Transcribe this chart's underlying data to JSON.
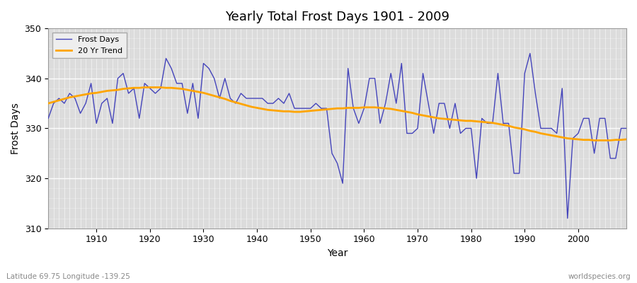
{
  "title": "Yearly Total Frost Days 1901 - 2009",
  "xlabel": "Year",
  "ylabel": "Frost Days",
  "lat_lon_label": "Latitude 69.75 Longitude -139.25",
  "watermark": "worldspecies.org",
  "xlim": [
    1901,
    2009
  ],
  "ylim": [
    310,
    350
  ],
  "yticks": [
    310,
    320,
    330,
    340,
    350
  ],
  "xticks": [
    1910,
    1920,
    1930,
    1940,
    1950,
    1960,
    1970,
    1980,
    1990,
    2000
  ],
  "frost_color": "#4444bb",
  "trend_color": "#FFA500",
  "bg_color": "#dcdcdc",
  "frost_days": [
    332,
    335,
    336,
    335,
    337,
    336,
    333,
    335,
    339,
    331,
    335,
    336,
    331,
    340,
    341,
    337,
    338,
    332,
    339,
    338,
    337,
    338,
    344,
    342,
    339,
    339,
    333,
    339,
    332,
    343,
    342,
    340,
    336,
    340,
    336,
    335,
    337,
    336,
    336,
    336,
    336,
    335,
    335,
    336,
    335,
    337,
    334,
    334,
    334,
    334,
    335,
    334,
    334,
    325,
    323,
    319,
    342,
    334,
    331,
    334,
    340,
    340,
    331,
    335,
    341,
    335,
    343,
    329,
    329,
    330,
    341,
    335,
    329,
    335,
    335,
    330,
    335,
    329,
    330,
    330,
    320,
    332,
    331,
    331,
    341,
    331,
    331,
    321,
    321,
    341,
    345,
    337,
    330,
    330,
    330,
    329,
    338,
    312,
    328,
    329,
    332,
    332,
    325,
    332,
    332,
    324,
    324,
    330,
    330
  ],
  "trend_days": [
    335.0,
    335.3,
    335.6,
    335.9,
    336.2,
    336.4,
    336.6,
    336.8,
    337.0,
    337.1,
    337.3,
    337.5,
    337.6,
    337.7,
    337.9,
    338.0,
    338.1,
    338.1,
    338.2,
    338.2,
    338.2,
    338.2,
    338.1,
    338.1,
    338.0,
    337.9,
    337.7,
    337.5,
    337.3,
    337.1,
    336.8,
    336.5,
    336.2,
    335.9,
    335.5,
    335.2,
    334.9,
    334.6,
    334.3,
    334.1,
    333.9,
    333.7,
    333.6,
    333.5,
    333.4,
    333.4,
    333.3,
    333.3,
    333.4,
    333.5,
    333.6,
    333.7,
    333.8,
    333.9,
    334.0,
    334.0,
    334.1,
    334.1,
    334.1,
    334.2,
    334.2,
    334.2,
    334.1,
    334.0,
    333.9,
    333.7,
    333.5,
    333.3,
    333.1,
    332.8,
    332.6,
    332.4,
    332.2,
    332.0,
    331.9,
    331.8,
    331.7,
    331.6,
    331.5,
    331.5,
    331.4,
    331.3,
    331.2,
    331.1,
    330.9,
    330.7,
    330.5,
    330.2,
    330.0,
    329.8,
    329.5,
    329.3,
    329.0,
    328.8,
    328.6,
    328.4,
    328.2,
    328.0,
    327.9,
    327.8,
    327.7,
    327.7,
    327.6,
    327.6,
    327.6,
    327.6,
    327.7,
    327.7,
    327.8
  ]
}
